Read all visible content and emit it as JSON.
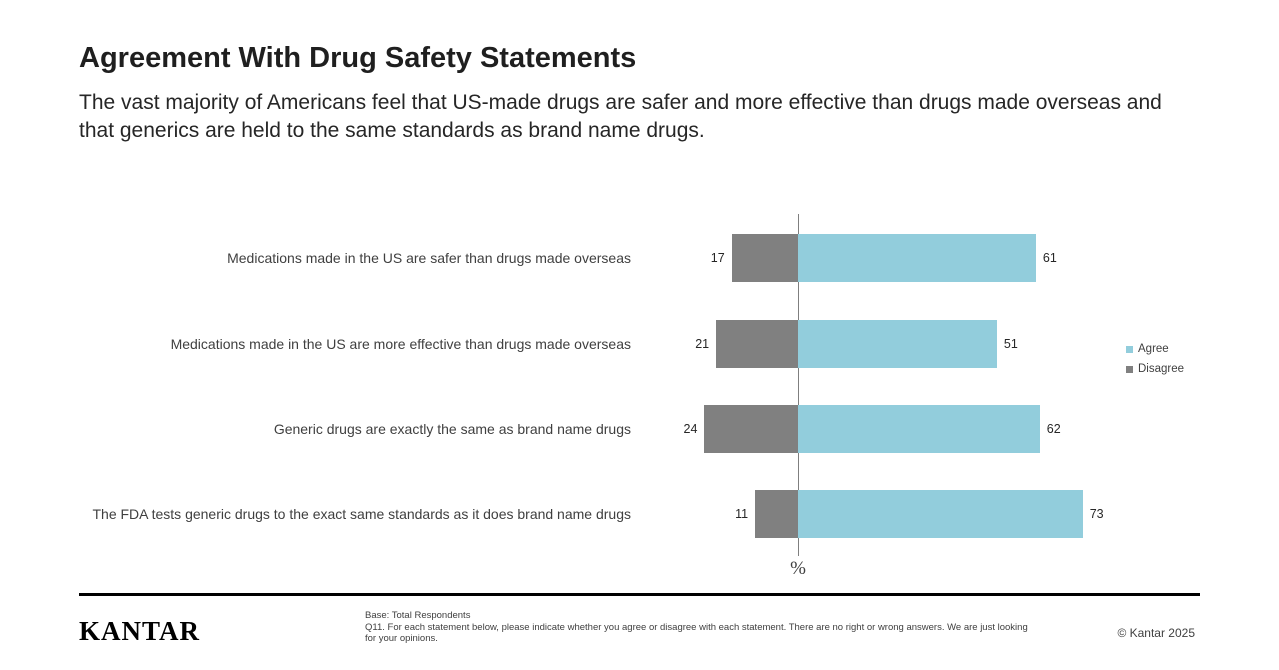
{
  "slide": {
    "title": "Agreement With Drug Safety Statements",
    "subtitle": "The vast majority of Americans feel that US-made drugs are safer and more effective than drugs made overseas and that generics are held to the same standards as brand name drugs."
  },
  "chart_data": {
    "type": "bar",
    "variant": "horizontal-diverging",
    "categories": [
      "Medications made in the US are safer than drugs made overseas",
      "Medications made in the US are more effective than drugs made overseas",
      "Generic drugs are exactly the same as brand name drugs",
      "The FDA tests generic drugs to the exact same standards as it does brand name drugs"
    ],
    "series": [
      {
        "name": "Agree",
        "color": "#92CDDC",
        "values": [
          61,
          51,
          62,
          73
        ]
      },
      {
        "name": "Disagree",
        "color": "#808080",
        "values": [
          17,
          21,
          24,
          11
        ]
      }
    ],
    "xlabel": "%",
    "legend_position": "right",
    "grid": false,
    "center_axis_line": true
  },
  "footer": {
    "logo_text": "KANTAR",
    "base_note": "Base: Total Respondents",
    "question_note": "Q11. For each statement below, please indicate whether you agree or disagree with each statement.  There are no right or wrong answers.  We are just looking for your opinions.",
    "copyright": "© Kantar 2025"
  }
}
